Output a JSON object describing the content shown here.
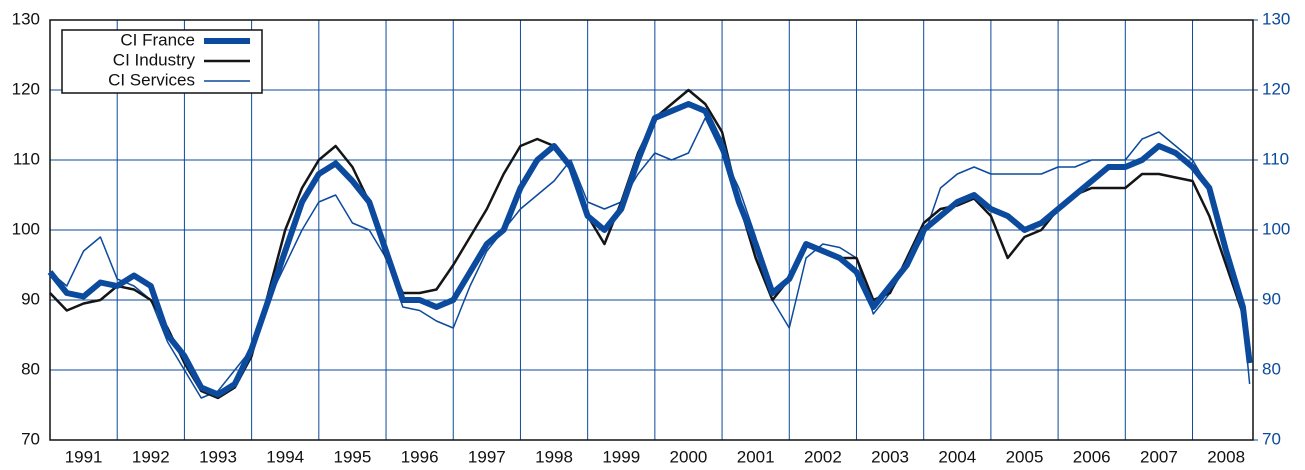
{
  "chart_data": {
    "type": "line",
    "x": [
      1991,
      1991.25,
      1991.5,
      1991.75,
      1992,
      1992.25,
      1992.5,
      1992.75,
      1993,
      1993.25,
      1993.5,
      1993.75,
      1994,
      1994.25,
      1994.5,
      1994.75,
      1995,
      1995.25,
      1995.5,
      1995.75,
      1996,
      1996.25,
      1996.5,
      1996.75,
      1997,
      1997.25,
      1997.5,
      1997.75,
      1998,
      1998.25,
      1998.5,
      1998.75,
      1999,
      1999.25,
      1999.5,
      1999.75,
      2000,
      2000.25,
      2000.5,
      2000.75,
      2001,
      2001.25,
      2001.5,
      2001.75,
      2002,
      2002.25,
      2002.5,
      2002.75,
      2003,
      2003.25,
      2003.5,
      2003.75,
      2004,
      2004.25,
      2004.5,
      2004.75,
      2005,
      2005.25,
      2005.5,
      2005.75,
      2006,
      2006.25,
      2006.5,
      2006.75,
      2007,
      2007.25,
      2007.5,
      2007.75,
      2008,
      2008.25,
      2008.5,
      2008.75,
      2008.85
    ],
    "series": [
      {
        "name": "CI Services",
        "color": "#0b4a9c",
        "width": 1.5,
        "values": [
          94,
          92,
          97,
          99,
          93,
          92,
          90,
          84,
          80,
          76,
          77,
          80,
          83,
          90,
          95,
          100,
          104,
          105,
          101,
          100,
          96,
          89,
          88.5,
          87,
          86,
          92,
          97,
          100,
          103,
          105,
          107,
          110,
          104,
          103,
          104,
          108,
          111,
          110,
          111,
          116,
          111,
          106,
          99,
          90,
          86,
          96,
          98,
          97.5,
          96,
          88,
          91,
          95,
          99,
          106,
          108,
          109,
          108,
          108,
          108,
          108,
          109,
          109,
          110,
          110,
          110,
          113,
          114,
          112,
          110,
          106,
          96,
          88,
          78
        ]
      },
      {
        "name": "CI Industry",
        "color": "#151515",
        "width": 2.5,
        "values": [
          91,
          88.5,
          89.5,
          90,
          92,
          91.5,
          90,
          86,
          81,
          77,
          76,
          77.5,
          82,
          91,
          100,
          106,
          110,
          112,
          109,
          104,
          96,
          91,
          91,
          91.5,
          95,
          99,
          103,
          108,
          112,
          113,
          112,
          109,
          102,
          98,
          104,
          111,
          116,
          118,
          120,
          118,
          114,
          104,
          96,
          90,
          93,
          98,
          97,
          96,
          96,
          90,
          91,
          96,
          101,
          103,
          103.5,
          104.5,
          102,
          96,
          99,
          100,
          103,
          105,
          106,
          106,
          106,
          108,
          108,
          107.5,
          107,
          102,
          95,
          88,
          81
        ]
      },
      {
        "name": "CI France",
        "color": "#0b4a9c",
        "width": 6,
        "values": [
          94,
          91,
          90.5,
          92.5,
          92,
          93.5,
          92,
          85,
          82,
          77.5,
          76.5,
          78,
          83,
          90,
          97,
          104,
          108,
          109.5,
          107,
          104,
          97,
          90,
          90,
          89,
          90,
          94,
          98,
          100,
          106,
          110,
          112,
          109,
          102,
          100,
          103,
          110,
          116,
          117,
          118,
          117,
          112,
          104,
          98,
          91,
          93,
          98,
          97,
          96,
          94,
          89,
          92,
          95,
          100,
          102,
          104,
          105,
          103,
          102,
          100,
          101,
          103,
          105,
          107,
          109,
          109,
          110,
          112,
          111,
          109,
          106,
          97,
          89,
          81
        ]
      }
    ],
    "xlim": [
      1991,
      2008.9
    ],
    "xticks": [
      {
        "value": 1991.5,
        "label": "1991"
      },
      {
        "value": 1992.5,
        "label": "1992"
      },
      {
        "value": 1993.5,
        "label": "1993"
      },
      {
        "value": 1994.5,
        "label": "1994"
      },
      {
        "value": 1995.5,
        "label": "1995"
      },
      {
        "value": 1996.5,
        "label": "1996"
      },
      {
        "value": 1997.5,
        "label": "1997"
      },
      {
        "value": 1998.5,
        "label": "1998"
      },
      {
        "value": 1999.5,
        "label": "1999"
      },
      {
        "value": 2000.5,
        "label": "2000"
      },
      {
        "value": 2001.5,
        "label": "2001"
      },
      {
        "value": 2002.5,
        "label": "2002"
      },
      {
        "value": 2003.5,
        "label": "2003"
      },
      {
        "value": 2004.5,
        "label": "2004"
      },
      {
        "value": 2005.5,
        "label": "2005"
      },
      {
        "value": 2006.5,
        "label": "2006"
      },
      {
        "value": 2007.5,
        "label": "2007"
      },
      {
        "value": 2008.5,
        "label": "2008"
      }
    ],
    "xgrid": [
      1992,
      1993,
      1994,
      1995,
      1996,
      1997,
      1998,
      1999,
      2000,
      2001,
      2002,
      2003,
      2004,
      2005,
      2006,
      2007,
      2008
    ],
    "ylim": [
      70,
      130
    ],
    "yticks": [
      70,
      80,
      90,
      100,
      110,
      120,
      130
    ],
    "y2lim": [
      70,
      130
    ],
    "y2ticks": [
      70,
      80,
      90,
      100,
      110,
      120,
      130
    ],
    "grid": true,
    "legend": "top-left"
  }
}
